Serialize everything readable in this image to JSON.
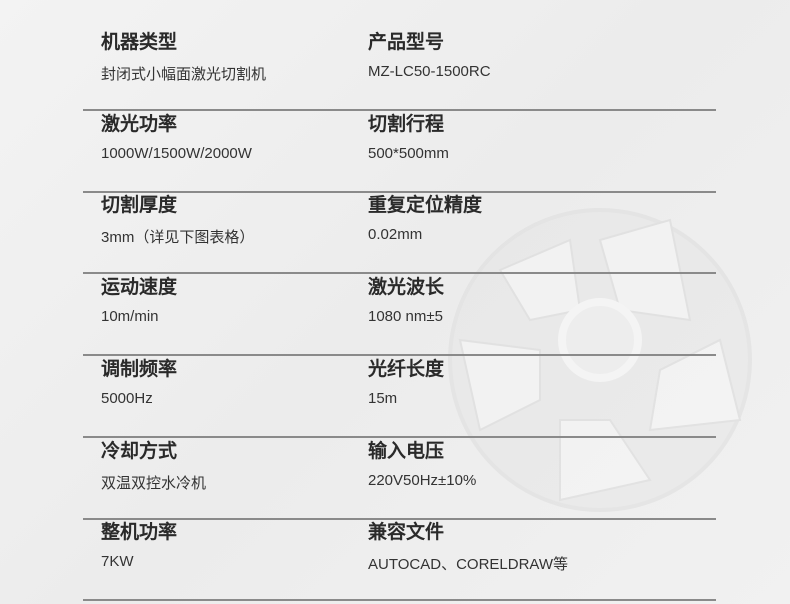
{
  "specs": [
    {
      "left": {
        "label": "机器类型",
        "value": "封闭式小幅面激光切割机"
      },
      "right": {
        "label": "产品型号",
        "value": "MZ-LC50-1500RC"
      }
    },
    {
      "left": {
        "label": "激光功率",
        "value": "1000W/1500W/2000W"
      },
      "right": {
        "label": "切割行程",
        "value": "500*500mm"
      }
    },
    {
      "left": {
        "label": "切割厚度",
        "value": "3mm（详见下图表格）"
      },
      "right": {
        "label": "重复定位精度",
        "value": "0.02mm"
      }
    },
    {
      "left": {
        "label": "运动速度",
        "value": "10m/min"
      },
      "right": {
        "label": "激光波长",
        "value": "1080 nm±5"
      }
    },
    {
      "left": {
        "label": "调制频率",
        "value": "5000Hz"
      },
      "right": {
        "label": "光纤长度",
        "value": "15m"
      }
    },
    {
      "left": {
        "label": "冷却方式",
        "value": "双温双控水冷机"
      },
      "right": {
        "label": "输入电压",
        "value": "220V50Hz±10%"
      }
    },
    {
      "left": {
        "label": "整机功率",
        "value": "7KW"
      },
      "right": {
        "label": "兼容文件",
        "value": "AUTOCAD、CORELDRAW等"
      }
    }
  ]
}
